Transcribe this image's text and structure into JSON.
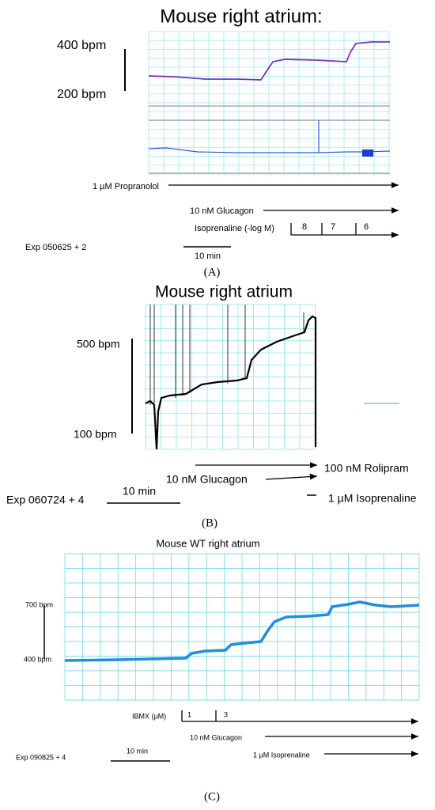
{
  "panels": [
    {
      "title": "Mouse right atrium:",
      "scale_top": "400 bpm",
      "scale_bottom": "200 bpm",
      "drugs": [
        "1 µM Propranolol",
        "10 nM Glucagon",
        "Isoprenaline (-log M)"
      ],
      "steps": [
        "8",
        "7",
        "6"
      ],
      "experiment": "Exp 050625 + 2",
      "time_bar": "10 min",
      "label": "(A)"
    },
    {
      "title": "Mouse right atrium",
      "scale_top": "500 bpm",
      "scale_bottom": "100 bpm",
      "drugs": [
        "100 nM Rolipram",
        "10 nM Glucagon",
        "1 µM Isoprenaline"
      ],
      "experiment": "Exp 060724 + 4",
      "time_bar": "10 min",
      "label": "(B)"
    },
    {
      "title": "Mouse WT right atrium",
      "scale_top": "700 bpm",
      "scale_bottom": "400 bpm",
      "drugs": [
        "IBMX (µM)",
        "10 nM Glucagon",
        "1 µM Isoprenaline"
      ],
      "steps": [
        "1",
        "3"
      ],
      "experiment": "Exp 090825 + 4",
      "time_bar": "10 min",
      "label": "(C)"
    }
  ]
}
